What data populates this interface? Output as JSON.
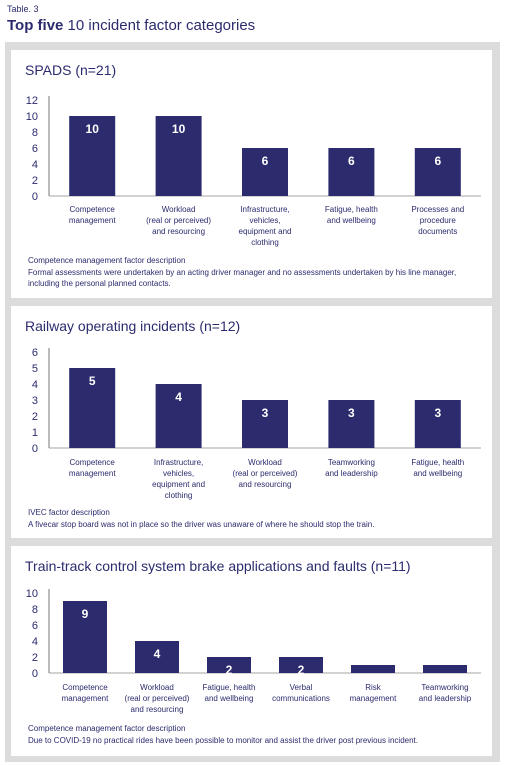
{
  "table_label": "Table. 3",
  "title_bold": "Top five",
  "title_rest": " 10 incident factor categories",
  "colors": {
    "bar": "#2b2b6e",
    "text": "#2b2b6e",
    "frame": "#dcdcdc"
  },
  "chart_data": [
    {
      "type": "bar",
      "title": "SPADS (n=21)",
      "categories": [
        "Competence\nmanagement",
        "Workload\n(real or perceived)\nand resourcing",
        "Infrastructure,\nvehicles,\nequipment and\nclothing",
        "Fatigue, health\nand wellbeing",
        "Processes and\nprocedure\ndocuments"
      ],
      "values": [
        10,
        10,
        6,
        6,
        6
      ],
      "yticks": [
        0,
        2,
        4,
        6,
        8,
        10,
        12
      ],
      "ylim": [
        0,
        12
      ],
      "desc_title": "Competence management factor description",
      "desc_text": "Formal assessments were undertaken by an acting driver manager and no assessments undertaken by his line manager, including the personal planned contacts."
    },
    {
      "type": "bar",
      "title": "Railway operating incidents (n=12)",
      "categories": [
        "Competence\nmanagement",
        "Infrastructure,\nvehicles,\nequipment and\nclothing",
        "Workload\n(real or perceived)\nand resourcing",
        "Teamworking\nand leadership",
        "Fatigue, health\nand wellbeing"
      ],
      "values": [
        5,
        4,
        3,
        3,
        3
      ],
      "yticks": [
        0,
        1,
        2,
        3,
        4,
        5,
        6
      ],
      "ylim": [
        0,
        6
      ],
      "desc_title": "IVEC factor description",
      "desc_text": "A fivecar stop board was not in place so the driver was unaware of where he should stop the train."
    },
    {
      "type": "bar",
      "title": "Train-track control system brake applications and faults (n=11)",
      "categories": [
        "Competence\nmanagement",
        "Workload\n(real or perceived)\nand resourcing",
        "Fatigue, health\nand wellbeing",
        "Verbal\ncommunications",
        "Risk\nmanagement",
        "Teamworking\nand leadership"
      ],
      "values": [
        9,
        4,
        2,
        2,
        1,
        1
      ],
      "yticks": [
        0,
        2,
        4,
        6,
        8,
        10
      ],
      "ylim": [
        0,
        10
      ],
      "desc_title": "Competence management factor description",
      "desc_text": "Due to COVID-19 no practical rides have been possible to monitor and assist the driver post previous incident."
    }
  ]
}
